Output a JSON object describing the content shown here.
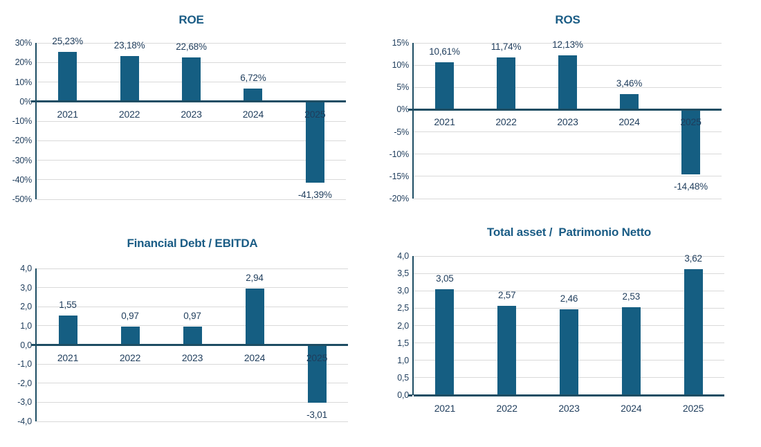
{
  "page": {
    "background": "#FFFFFF"
  },
  "colors": {
    "bar": "#155E82",
    "title": "#1A5C85",
    "tick_label": "#1F3D5C",
    "axis_line": "#1D4D63",
    "gridline": "#D9D9D9"
  },
  "chart_data": [
    {
      "id": "roe",
      "type": "bar",
      "title": "ROE",
      "categories": [
        "2021",
        "2022",
        "2023",
        "2024",
        "2025"
      ],
      "values": [
        25.23,
        23.18,
        22.68,
        6.72,
        -41.39
      ],
      "value_labels": [
        "25,23%",
        "23,18%",
        "22,68%",
        "6,72%",
        "-41,39%"
      ],
      "ylim": [
        -50,
        30
      ],
      "y_step": 10,
      "y_tick_labels": [
        "30%",
        "20%",
        "10%",
        "0%",
        "-10%",
        "-20%",
        "-30%",
        "-40%",
        "-50%"
      ],
      "grid": true,
      "legend": false,
      "x_labels_position": "zero"
    },
    {
      "id": "ros",
      "type": "bar",
      "title": "ROS",
      "categories": [
        "2021",
        "2022",
        "2023",
        "2024",
        "2025"
      ],
      "values": [
        10.61,
        11.74,
        12.13,
        3.46,
        -14.48
      ],
      "value_labels": [
        "10,61%",
        "11,74%",
        "12,13%",
        "3,46%",
        "-14,48%"
      ],
      "ylim": [
        -20,
        15
      ],
      "y_step": 5,
      "y_tick_labels": [
        "15%",
        "10%",
        "5%",
        "0%",
        "-5%",
        "-10%",
        "-15%",
        "-20%"
      ],
      "grid": true,
      "legend": false,
      "x_labels_position": "zero"
    },
    {
      "id": "financial-debt-ebitda",
      "type": "bar",
      "title": "Financial Debt / EBITDA",
      "categories": [
        "2021",
        "2022",
        "2023",
        "2024",
        "2025"
      ],
      "values": [
        1.55,
        0.97,
        0.97,
        2.94,
        -3.01
      ],
      "value_labels": [
        "1,55",
        "0,97",
        "0,97",
        "2,94",
        "-3,01"
      ],
      "ylim": [
        -4,
        4
      ],
      "y_step": 1,
      "y_tick_labels": [
        "4,0",
        "3,0",
        "2,0",
        "1,0",
        "0,0",
        "-1,0",
        "-2,0",
        "-3,0",
        "-4,0"
      ],
      "grid": true,
      "legend": false,
      "x_labels_position": "zero"
    },
    {
      "id": "total-asset-patrimonio-netto",
      "type": "bar",
      "title": "Total asset /  Patrimonio Netto",
      "categories": [
        "2021",
        "2022",
        "2023",
        "2024",
        "2025"
      ],
      "values": [
        3.05,
        2.57,
        2.46,
        2.53,
        3.62
      ],
      "value_labels": [
        "3,05",
        "2,57",
        "2,46",
        "2,53",
        "3,62"
      ],
      "ylim": [
        0,
        4
      ],
      "y_step": 0.5,
      "y_tick_labels": [
        "4,0",
        "3,5",
        "3,0",
        "2,5",
        "2,0",
        "1,5",
        "1,0",
        "0,5",
        "0,0"
      ],
      "grid": true,
      "legend": false,
      "x_labels_position": "bottom"
    }
  ]
}
